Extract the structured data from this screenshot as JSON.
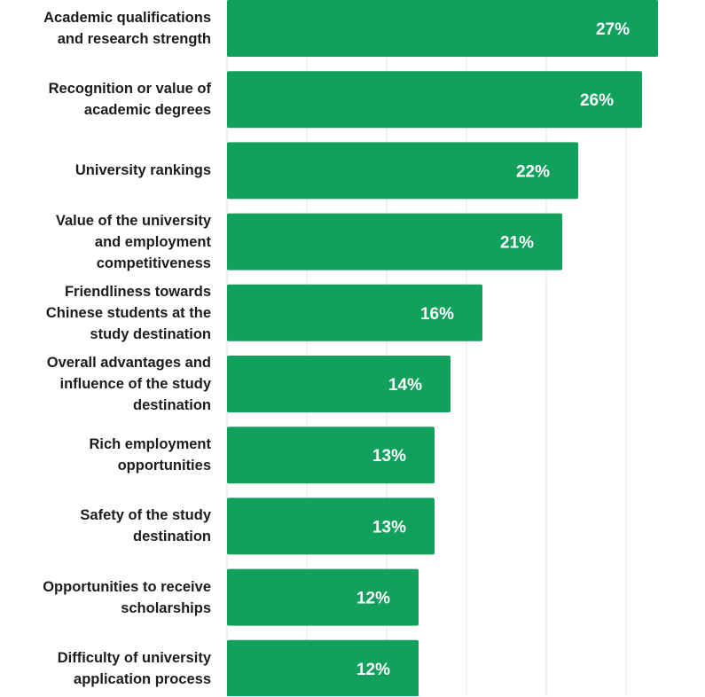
{
  "chart_data": {
    "type": "bar",
    "orientation": "horizontal",
    "categories": [
      "Academic qualifications and research strength",
      "Recognition or value of academic degrees",
      "University rankings",
      "Value of the university and employment competitiveness",
      "Friendliness towards Chinese students at the study destination",
      "Overall advantages and influence of the study destination",
      "Rich employment opportunities",
      "Safety of the study destination",
      "Opportunities to receive scholarships",
      "Difficulty of university application process"
    ],
    "label_lines": [
      [
        "Academic qualifications",
        "and research strength"
      ],
      [
        "Recognition or value of",
        "academic degrees"
      ],
      [
        "University rankings"
      ],
      [
        "Value of the university",
        "and employment",
        "competitiveness"
      ],
      [
        "Friendliness towards",
        "Chinese students at the",
        "study destination"
      ],
      [
        "Overall advantages and",
        "influence of the study",
        "destination"
      ],
      [
        "Rich employment",
        "opportunities"
      ],
      [
        "Safety of the study",
        "destination"
      ],
      [
        "Opportunities to receive",
        "scholarships"
      ],
      [
        "Difficulty of university",
        "application process"
      ]
    ],
    "values": [
      27,
      26,
      22,
      21,
      16,
      14,
      13,
      13,
      12,
      12
    ],
    "data_labels": [
      "27%",
      "26%",
      "22%",
      "21%",
      "16%",
      "14%",
      "13%",
      "13%",
      "12%",
      "12%"
    ],
    "xlim": [
      0,
      30
    ],
    "grid": true,
    "bar_color": "#12a15c",
    "label_color": "#ffffff",
    "grid_color": "#e3e3e3"
  }
}
